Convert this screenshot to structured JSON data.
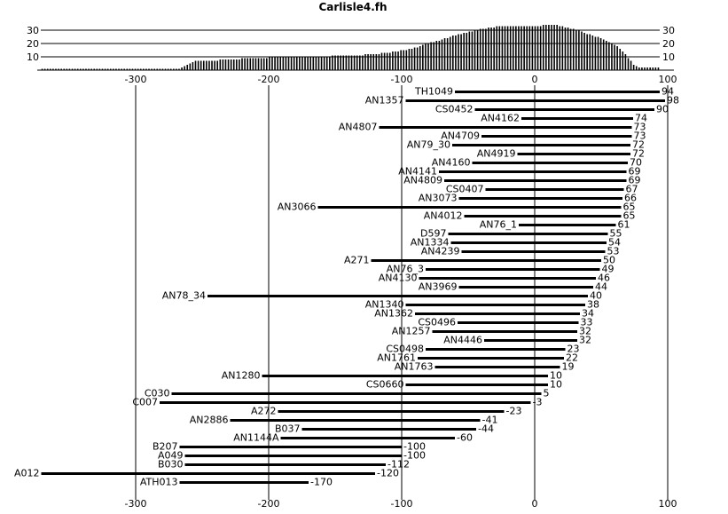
{
  "chart_data": {
    "type": "bar",
    "title": "Carlisle4.fh",
    "x_ticks": [
      -300,
      -200,
      -100,
      0,
      100
    ],
    "histogram_ticks": [
      10,
      20,
      30
    ],
    "histogram_counts": [
      1,
      1,
      1,
      1,
      1,
      1,
      1,
      1,
      1,
      1,
      1,
      1,
      1,
      1,
      1,
      1,
      1,
      1,
      1,
      1,
      1,
      1,
      1,
      1,
      1,
      1,
      1,
      1,
      1,
      1,
      1,
      1,
      1,
      1,
      1,
      1,
      1,
      1,
      1,
      1,
      1,
      1,
      1,
      1,
      1,
      1,
      1,
      1,
      1,
      1,
      1,
      2,
      3,
      4,
      5,
      6,
      7,
      7,
      7,
      7,
      7,
      7,
      7,
      7,
      7,
      8,
      8,
      8,
      8,
      8,
      8,
      8,
      8,
      9,
      9,
      9,
      9,
      9,
      9,
      9,
      9,
      9,
      9,
      10,
      10,
      10,
      10,
      10,
      10,
      10,
      10,
      10,
      10,
      10,
      10,
      10,
      10,
      10,
      10,
      10,
      10,
      10,
      10,
      10,
      10,
      10,
      11,
      11,
      11,
      11,
      11,
      11,
      11,
      11,
      11,
      11,
      11,
      11,
      12,
      12,
      12,
      12,
      12,
      12,
      13,
      13,
      13,
      13,
      14,
      14,
      14,
      15,
      15,
      15,
      16,
      16,
      17,
      17,
      18,
      19,
      20,
      20,
      21,
      21,
      22,
      22,
      23,
      24,
      24,
      25,
      26,
      26,
      27,
      27,
      28,
      28,
      29,
      29,
      30,
      30,
      31,
      31,
      31,
      32,
      32,
      32,
      33,
      33,
      33,
      33,
      33,
      33,
      33,
      33,
      33,
      33,
      33,
      33,
      33,
      33,
      33,
      33,
      33,
      34,
      34,
      34,
      34,
      34,
      34,
      33,
      33,
      32,
      32,
      31,
      31,
      30,
      30,
      29,
      28,
      27,
      27,
      26,
      25,
      25,
      24,
      23,
      22,
      21,
      20,
      19,
      18,
      16,
      14,
      12,
      9,
      7,
      4,
      3,
      2,
      2,
      2,
      2,
      2,
      2,
      2,
      2
    ],
    "ranges": [
      {
        "label": "TH1049",
        "start": -60,
        "end": 94
      },
      {
        "label": "AN1357",
        "start": -97,
        "end": 98
      },
      {
        "label": "CS0452",
        "start": -45,
        "end": 90
      },
      {
        "label": "AN4162",
        "start": -10,
        "end": 74
      },
      {
        "label": "AN4807",
        "start": -117,
        "end": 73
      },
      {
        "label": "AN4709",
        "start": -40,
        "end": 73
      },
      {
        "label": "AN79_30",
        "start": -62,
        "end": 72
      },
      {
        "label": "AN4919",
        "start": -13,
        "end": 72
      },
      {
        "label": "AN4160",
        "start": -47,
        "end": 70
      },
      {
        "label": "AN4141",
        "start": -72,
        "end": 69
      },
      {
        "label": "AN4809",
        "start": -68,
        "end": 69
      },
      {
        "label": "CS0407",
        "start": -37,
        "end": 67
      },
      {
        "label": "AN3073",
        "start": -57,
        "end": 66
      },
      {
        "label": "AN3066",
        "start": -163,
        "end": 65
      },
      {
        "label": "AN4012",
        "start": -53,
        "end": 65
      },
      {
        "label": "AN76_1",
        "start": -12,
        "end": 61
      },
      {
        "label": "D597",
        "start": -65,
        "end": 55
      },
      {
        "label": "AN1334",
        "start": -63,
        "end": 54
      },
      {
        "label": "AN4239",
        "start": -55,
        "end": 53
      },
      {
        "label": "A271",
        "start": -123,
        "end": 50
      },
      {
        "label": "AN76_3",
        "start": -82,
        "end": 49
      },
      {
        "label": "AN4130",
        "start": -87,
        "end": 46
      },
      {
        "label": "AN3969",
        "start": -57,
        "end": 44
      },
      {
        "label": "AN78_34",
        "start": -246,
        "end": 40
      },
      {
        "label": "AN1340",
        "start": -97,
        "end": 38
      },
      {
        "label": "AN1362",
        "start": -90,
        "end": 34
      },
      {
        "label": "CS0496",
        "start": -58,
        "end": 33
      },
      {
        "label": "AN1257",
        "start": -77,
        "end": 32
      },
      {
        "label": "AN4446",
        "start": -38,
        "end": 32
      },
      {
        "label": "CS0498",
        "start": -82,
        "end": 23
      },
      {
        "label": "AN1761",
        "start": -88,
        "end": 22
      },
      {
        "label": "AN1763",
        "start": -75,
        "end": 19
      },
      {
        "label": "AN1280",
        "start": -205,
        "end": 10
      },
      {
        "label": "CS0660",
        "start": -97,
        "end": 10
      },
      {
        "label": "C030",
        "start": -273,
        "end": 5
      },
      {
        "label": "C007",
        "start": -282,
        "end": -3
      },
      {
        "label": "A272",
        "start": -193,
        "end": -23
      },
      {
        "label": "AN2886",
        "start": -229,
        "end": -41
      },
      {
        "label": "B037",
        "start": -175,
        "end": -44
      },
      {
        "label": "AN1144A",
        "start": -191,
        "end": -60
      },
      {
        "label": "B207",
        "start": -267,
        "end": -100
      },
      {
        "label": "A049",
        "start": -263,
        "end": -100
      },
      {
        "label": "B030",
        "start": -263,
        "end": -112
      },
      {
        "label": "A012",
        "start": -371,
        "end": -120
      },
      {
        "label": "ATH013",
        "start": -267,
        "end": -170
      }
    ]
  }
}
